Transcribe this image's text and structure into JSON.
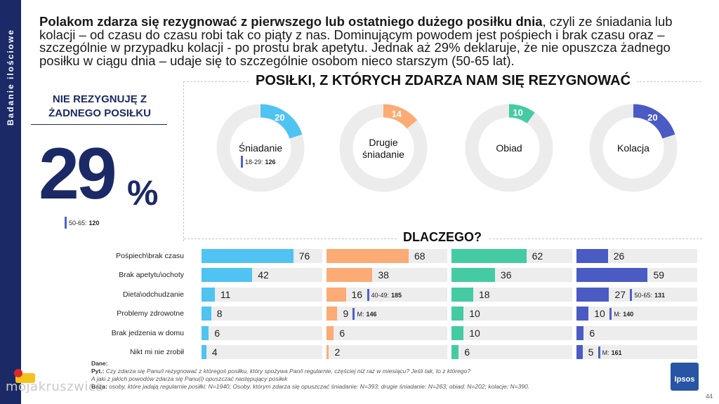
{
  "side_label": "Badanie ilościowe",
  "headline": {
    "bold": "Polakom zdarza się rezygnować z pierwszego lub ostatniego dużego posiłku dnia",
    "rest": ", czyli ze śniadania lub kolacji – od czasu do czasu robi tak co piąty z nas. Dominującym powodem jest pośpiech i brak czasu oraz – szczególnie w przypadku kolacji - po prostu brak apetytu. Jednak aż 29% deklaruje, że nie opuszcza żadnego posiłku w ciągu dnia – udaje się to szczególnie osobom nieco starszym (50-65 lat)."
  },
  "no_skip": {
    "title": "NIE REZYGNUJĘ Z ŻADNEGO POSIŁKU",
    "value": "29",
    "unit": "%",
    "tag_label": "50-65:",
    "tag_value": "120"
  },
  "chart_data": [
    {
      "type": "pie",
      "title": "POSIŁKI, Z KTÓRYCH ZDARZA NAM SIĘ REZYGNOWAĆ",
      "slices": [
        {
          "label": "Śniadanie",
          "value": 20,
          "color": "#4fc3f1",
          "tag_label": "18-29:",
          "tag_value": "126"
        },
        {
          "label": "Drugie śniadanie",
          "value": 14,
          "color": "#fbab73",
          "tag_label": "",
          "tag_value": ""
        },
        {
          "label": "Obiad",
          "value": 10,
          "color": "#45cba4",
          "tag_label": "",
          "tag_value": ""
        },
        {
          "label": "Kolacja",
          "value": 20,
          "color": "#4a5bc4",
          "tag_label": "",
          "tag_value": ""
        }
      ],
      "track_color": "#ececec"
    },
    {
      "type": "bar",
      "title": "DLACZEGO?",
      "categories": [
        "Pośpiech\\brak czasu",
        "Brak apetytu\\ochoty",
        "Dieta\\odchudzanie",
        "Problemy zdrowotne",
        "Brak jedzenia w domu",
        "Nikt mi nie zrobił"
      ],
      "series": [
        {
          "meal": "Śniadanie",
          "color": "#4fc3f1",
          "values": [
            76,
            42,
            11,
            8,
            6,
            4
          ],
          "tags": [
            null,
            null,
            null,
            null,
            null,
            null
          ]
        },
        {
          "meal": "Drugie śniadanie",
          "color": "#fbab73",
          "values": [
            68,
            38,
            16,
            9,
            6,
            2
          ],
          "tags": [
            null,
            null,
            {
              "label": "40-49:",
              "value": "185"
            },
            {
              "label": "M:",
              "value": "146"
            },
            null,
            null
          ]
        },
        {
          "meal": "Obiad",
          "color": "#45cba4",
          "values": [
            62,
            36,
            18,
            10,
            10,
            6
          ],
          "tags": [
            null,
            null,
            null,
            null,
            null,
            null
          ]
        },
        {
          "meal": "Kolacja",
          "color": "#4a5bc4",
          "values": [
            26,
            59,
            27,
            10,
            6,
            5
          ],
          "tags": [
            null,
            null,
            {
              "label": "50-65:",
              "value": "131"
            },
            {
              "label": "M:",
              "value": "140"
            },
            null,
            {
              "label": "M:",
              "value": "161"
            }
          ]
        }
      ],
      "ylim": [
        0,
        100
      ]
    }
  ],
  "footer": {
    "line1_label": "Dane:",
    "line1_text": "",
    "line2_label": "Pyt.:",
    "line2_text": "Czy zdarza się Panu/i rezygnować z któregoś posiłku, który spożywa Pan/i regularnie, częściej niż raz w miesiącu? Jeśli tak, to z którego?",
    "line3_text": "A jaki z jakich powodów zdarza się Panu(i) opuszczać następujący posiłek",
    "line4_label": "Baza:",
    "line4_text": "osoby, które jadają regularnie posiłki: N=1940; Osoby, którym zdarza się opuszczać śniadanie: N=393; drugie śniadanie: N=263; obiad: N=202; kolacje: N=390."
  },
  "watermark": "mojakruszwica",
  "brand": "Ipsos",
  "page_number": "44"
}
